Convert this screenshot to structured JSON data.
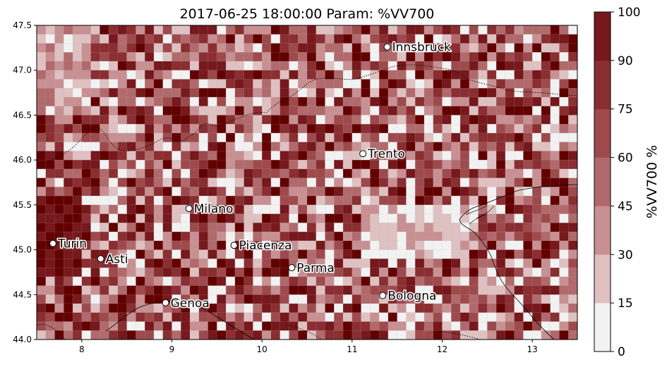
{
  "title": "2017-06-25 18:00:00 Param: %VV700",
  "colorbar": {
    "label": "%VV700  %",
    "ticks": [
      "0",
      "15",
      "30",
      "45",
      "60",
      "75",
      "90",
      "100"
    ],
    "bounds": [
      0,
      15,
      30,
      45,
      60,
      75,
      90,
      100
    ],
    "colors": [
      "#f2f2f2",
      "#dfc1c2",
      "#c89092",
      "#b16a6c",
      "#9e4a4d",
      "#8a2e31",
      "#76181c"
    ],
    "top_color": "#620000"
  },
  "map": {
    "lon_range": [
      7.5,
      13.5
    ],
    "lat_range": [
      44.0,
      47.5
    ],
    "x_ticks": [
      {
        "value": 8,
        "label": "8"
      },
      {
        "value": 9,
        "label": "9"
      },
      {
        "value": 10,
        "label": "10"
      },
      {
        "value": 11,
        "label": "11"
      },
      {
        "value": 12,
        "label": "12"
      },
      {
        "value": 13,
        "label": "13"
      }
    ],
    "y_ticks": [
      {
        "value": 44.0,
        "label": "44.0"
      },
      {
        "value": 44.5,
        "label": "44.5"
      },
      {
        "value": 45.0,
        "label": "45.0"
      },
      {
        "value": 45.5,
        "label": "45.5"
      },
      {
        "value": 46.0,
        "label": "46.0"
      },
      {
        "value": 46.5,
        "label": "46.5"
      },
      {
        "value": 47.0,
        "label": "47.0"
      },
      {
        "value": 47.5,
        "label": "47.5"
      }
    ],
    "cities": [
      {
        "name": "Innsbruck",
        "lon": 11.39,
        "lat": 47.26
      },
      {
        "name": "Trento",
        "lon": 11.12,
        "lat": 46.07
      },
      {
        "name": "Milano",
        "lon": 9.19,
        "lat": 45.46
      },
      {
        "name": "Turin",
        "lon": 7.68,
        "lat": 45.07
      },
      {
        "name": "Asti",
        "lon": 8.21,
        "lat": 44.9
      },
      {
        "name": "Piacenza",
        "lon": 9.69,
        "lat": 45.05
      },
      {
        "name": "Parma",
        "lon": 10.33,
        "lat": 44.8
      },
      {
        "name": "Bologna",
        "lon": 11.34,
        "lat": 44.49
      },
      {
        "name": "Genoa",
        "lon": 8.93,
        "lat": 44.41
      }
    ]
  }
}
